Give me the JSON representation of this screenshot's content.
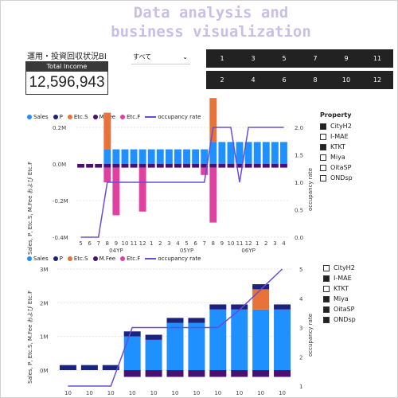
{
  "header": {
    "title_line1": "Data analysis and",
    "title_line2": "business visualization"
  },
  "report_title": "運用・投資回収状況BI",
  "kpi_card": {
    "label": "Total Income",
    "value": "12,596,943"
  },
  "filter_dropdown": {
    "selected": "すべて"
  },
  "month_tiles": {
    "top": [
      "1",
      "3",
      "5",
      "7",
      "9",
      "11"
    ],
    "bottom": [
      "2",
      "4",
      "6",
      "8",
      "10",
      "12"
    ]
  },
  "colors": {
    "sales": "#1e90ff",
    "p": "#1a237e",
    "etc_s": "#e8733a",
    "m_fee": "#4a1070",
    "etc_f": "#e040a0",
    "occupancy": "#6a4bd8"
  },
  "property_slicer_top": {
    "title": "Property",
    "items": [
      {
        "label": "CityH2",
        "checked": true
      },
      {
        "label": "I-MAE",
        "checked": false
      },
      {
        "label": "KTKT",
        "checked": true
      },
      {
        "label": "Miya",
        "checked": false
      },
      {
        "label": "OitaSP",
        "checked": false
      },
      {
        "label": "ONDsp",
        "checked": false
      }
    ]
  },
  "property_slicer_bottom": {
    "items": [
      {
        "label": "CityH2",
        "checked": false
      },
      {
        "label": "I-MAE",
        "checked": true
      },
      {
        "label": "KTKT",
        "checked": false
      },
      {
        "label": "Miya",
        "checked": true
      },
      {
        "label": "OitaSP",
        "checked": true
      },
      {
        "label": "ONDsp",
        "checked": true
      }
    ]
  },
  "chart_data": [
    {
      "type": "bar",
      "legend": [
        "Sales",
        "P",
        "Etc.S",
        "M.Fee",
        "Etc.F",
        "occupancy rate"
      ],
      "ylabel": "Sales, P, Etc.S, M.Fee および Etc.F",
      "y2label": "occupancy rate",
      "ylim": [
        -0.4,
        0.2
      ],
      "y2lim": [
        0,
        2
      ],
      "y_ticks": [
        "0.2M",
        "0.0M",
        "-0.2M",
        "-0.4M"
      ],
      "y2_ticks": [
        "2.0",
        "1.5",
        "1.0",
        "0.5",
        "0.0"
      ],
      "x": [
        "5",
        "6",
        "7",
        "8",
        "9",
        "10",
        "11",
        "12",
        "1",
        "2",
        "3",
        "4",
        "5",
        "6",
        "7",
        "8",
        "9",
        "10",
        "11",
        "12",
        "1",
        "2",
        "3",
        "4"
      ],
      "x_groups": [
        "04YP",
        "05YP",
        "06YP"
      ],
      "series": [
        {
          "name": "Sales",
          "values": [
            0,
            0,
            0,
            0.08,
            0.08,
            0.08,
            0.08,
            0.08,
            0.08,
            0.08,
            0.08,
            0.08,
            0.08,
            0.08,
            0.08,
            0.12,
            0.12,
            0.12,
            0.12,
            0.12,
            0.12,
            0.12,
            0.12,
            0.12
          ]
        },
        {
          "name": "Etc.S",
          "values": [
            0,
            0,
            0,
            0.2,
            0,
            0,
            0,
            0,
            0,
            0,
            0,
            0,
            0,
            0,
            0,
            0.24,
            0,
            0,
            0,
            0,
            0,
            0,
            0,
            0
          ]
        },
        {
          "name": "M.Fee",
          "values": [
            -0.02,
            -0.02,
            -0.02,
            -0.02,
            -0.02,
            -0.02,
            -0.02,
            -0.02,
            -0.02,
            -0.02,
            -0.02,
            -0.02,
            -0.02,
            -0.02,
            -0.02,
            -0.02,
            -0.02,
            -0.02,
            -0.02,
            -0.02,
            -0.02,
            -0.02,
            -0.02,
            -0.02
          ]
        },
        {
          "name": "Etc.F",
          "values": [
            0,
            0,
            0,
            -0.08,
            -0.26,
            0,
            0,
            -0.24,
            0,
            0,
            0,
            0,
            0,
            0,
            -0.04,
            -0.3,
            0,
            0,
            0,
            0,
            0,
            0,
            0,
            0
          ]
        },
        {
          "name": "occupancy rate",
          "values": [
            0,
            0,
            0,
            1.0,
            1.0,
            1.0,
            1.0,
            1.0,
            1.0,
            1.0,
            1.0,
            1.0,
            1.0,
            1.0,
            1.0,
            2.0,
            2.0,
            2.0,
            1.0,
            2.0,
            2.0,
            2.0,
            2.0,
            2.0
          ]
        }
      ]
    },
    {
      "type": "bar",
      "legend": [
        "Sales",
        "P",
        "Etc.S",
        "M.Fee",
        "Etc.F",
        "occupancy rate"
      ],
      "ylabel": "Sales, P, Etc.S, M.Fee および Etc.F",
      "y2label": "occupancy rate",
      "ylim": [
        0,
        3
      ],
      "y2lim": [
        1,
        5
      ],
      "y_ticks": [
        "3M",
        "2M",
        "1M",
        "0M"
      ],
      "y2_ticks": [
        "5",
        "4",
        "3",
        "2",
        "1"
      ],
      "x": [
        "10",
        "10",
        "10",
        "10",
        "10",
        "10",
        "10",
        "10",
        "10",
        "10",
        "10"
      ],
      "series": [
        {
          "name": "P",
          "values": [
            0.15,
            0.15,
            0.15,
            0.15,
            0.15,
            0.15,
            0.15,
            0.15,
            0.15,
            0.15,
            0.15
          ]
        },
        {
          "name": "Sales",
          "values": [
            0,
            0,
            0,
            1.0,
            0.9,
            1.4,
            1.4,
            1.8,
            1.8,
            1.8,
            1.8
          ]
        },
        {
          "name": "M.Fee",
          "values": [
            0,
            0,
            0,
            -0.2,
            -0.2,
            -0.2,
            -0.2,
            -0.2,
            -0.2,
            -0.2,
            -0.2
          ]
        },
        {
          "name": "Etc.S",
          "values": [
            0,
            0,
            0,
            0,
            0,
            0,
            0,
            0,
            0,
            0.6,
            0
          ]
        },
        {
          "name": "occupancy rate",
          "values": [
            1,
            1,
            1,
            3,
            3,
            3,
            3,
            3,
            3.6,
            4.3,
            5
          ]
        }
      ]
    }
  ]
}
